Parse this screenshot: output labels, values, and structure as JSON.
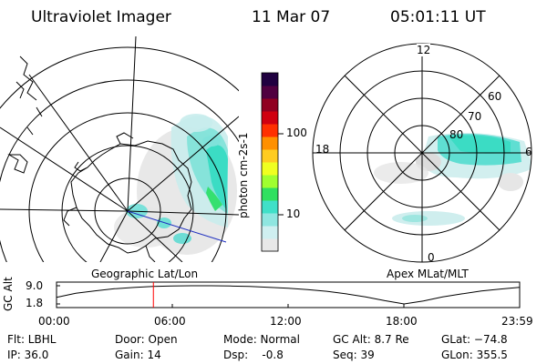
{
  "header": {
    "title": "Ultraviolet Imager",
    "date": "11 Mar 07",
    "time": "05:01:11 UT"
  },
  "colorbar": {
    "unit_label": "photon cm-2s-1",
    "ticks": [
      "100",
      "10"
    ],
    "colors": [
      "#e8e8e8",
      "#cfeff0",
      "#8fe6e0",
      "#40e0c8",
      "#30e060",
      "#a0ff30",
      "#f0ff20",
      "#ffcc20",
      "#ff9000",
      "#ff3000",
      "#d00010",
      "#900020",
      "#500040",
      "#200040"
    ]
  },
  "left_panel": {
    "caption": "Geographic Lat/Lon"
  },
  "right_panel": {
    "caption": "Apex MLat/MLT",
    "mlt_labels": {
      "top": "12",
      "right": "6",
      "bottom": "0",
      "left": "18"
    },
    "lat_labels": [
      "80",
      "70",
      "60"
    ]
  },
  "timeline": {
    "ylabel": "GC Alt",
    "y_ticks": [
      "9.0",
      "1.8"
    ],
    "x_ticks": [
      "00:00",
      "06:00",
      "12:00",
      "18:00",
      "23:59"
    ],
    "marker_time": "05:01",
    "marker_color": "#ff0000"
  },
  "info": {
    "flt": "Flt: LBHL",
    "ip": "IP: 36.0",
    "door": "Door: Open",
    "gain": "Gain: 14",
    "mode": "Mode: Normal",
    "dsp": "Dsp:    -0.8",
    "gcalt": "GC Alt: 8.7 Re",
    "seq": "Seq: 39",
    "glat": "GLat: −74.8",
    "glon": "GLon: 355.5"
  },
  "chart_data": {
    "type": "line",
    "title": "",
    "xlabel": "",
    "ylabel": "GC Alt",
    "xlim": [
      "00:00",
      "23:59"
    ],
    "ylim": [
      1.8,
      9.0
    ],
    "series": [
      {
        "x": [
          "00:00",
          "01:00",
          "02:00",
          "03:00",
          "04:00",
          "05:00",
          "06:00",
          "07:00",
          "08:00",
          "09:00",
          "10:00",
          "11:00",
          "12:00",
          "13:00",
          "14:00",
          "15:00",
          "16:00",
          "17:00",
          "18:00",
          "19:00",
          "20:00",
          "21:00",
          "22:00",
          "23:00",
          "23:59"
        ],
        "values": [
          4.4,
          6.0,
          7.0,
          7.8,
          8.3,
          8.7,
          8.9,
          9.0,
          9.0,
          8.9,
          8.7,
          8.4,
          8.0,
          7.5,
          6.8,
          5.8,
          4.6,
          3.1,
          1.8,
          3.0,
          4.6,
          5.8,
          6.9,
          7.7,
          8.4
        ]
      }
    ]
  }
}
